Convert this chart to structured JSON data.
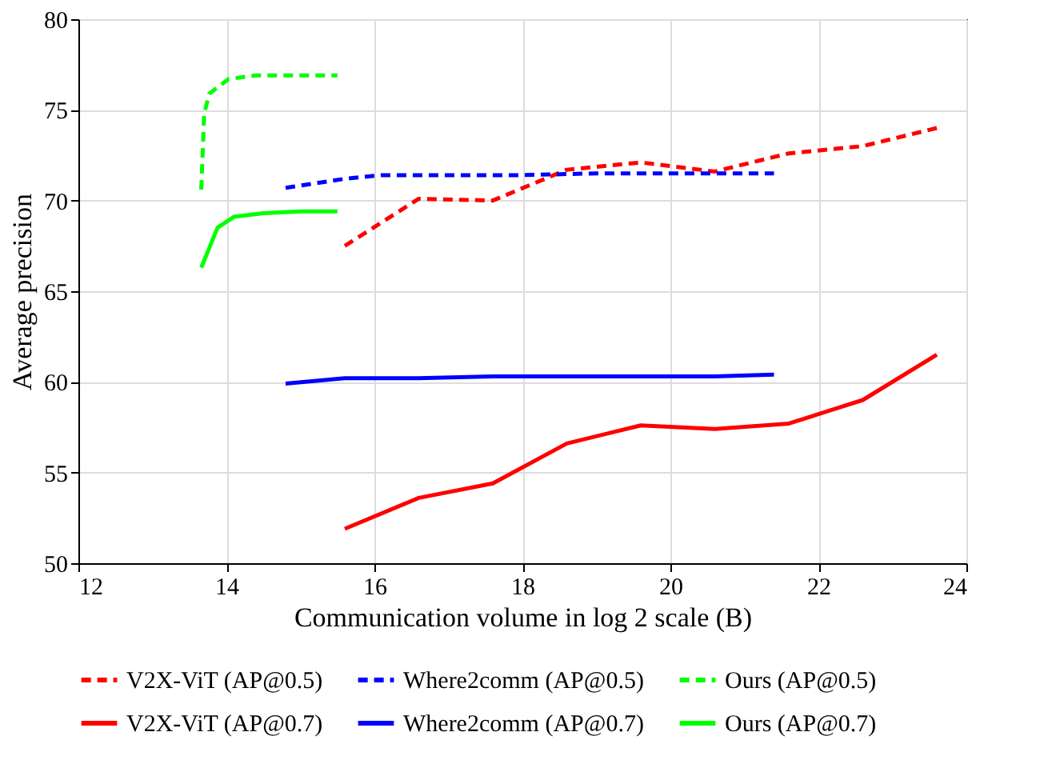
{
  "chart_data": {
    "type": "line",
    "xlabel": "Communication volume in log 2 scale (B)",
    "ylabel": "Average precision",
    "xlim": [
      12,
      24
    ],
    "xticks": [
      12,
      14,
      16,
      18,
      20,
      22,
      24
    ],
    "ylim": [
      50,
      80
    ],
    "yticks": [
      50,
      55,
      60,
      65,
      70,
      75,
      80
    ],
    "grid": true,
    "legend": "bottom",
    "marker": "none",
    "series": [
      {
        "name": "V2X-ViT (AP@0.5)",
        "color": "#ff0000",
        "line_style": "dashed",
        "x": [
          15.6,
          16.6,
          17.6,
          18.6,
          19.6,
          20.6,
          21.6,
          22.6,
          23.6
        ],
        "values": [
          67.5,
          70.1,
          70.0,
          71.7,
          72.1,
          71.6,
          72.6,
          73.0,
          74.0
        ]
      },
      {
        "name": "Where2comm (AP@0.5)",
        "color": "#0000ff",
        "line_style": "dashed",
        "x": [
          14.8,
          15.6,
          16.1,
          17.0,
          18.0,
          19.0,
          20.0,
          21.0,
          21.4
        ],
        "values": [
          70.7,
          71.2,
          71.4,
          71.4,
          71.4,
          71.5,
          71.5,
          71.5,
          71.5
        ]
      },
      {
        "name": "Ours (AP@0.5)",
        "color": "#00ff00",
        "line_style": "dashed",
        "x": [
          13.66,
          13.7,
          13.77,
          14.03,
          14.4,
          15.5
        ],
        "values": [
          70.6,
          74.8,
          75.9,
          76.7,
          76.9,
          76.9
        ]
      },
      {
        "name": "V2X-ViT (AP@0.7)",
        "color": "#ff0000",
        "line_style": "solid",
        "x": [
          15.6,
          16.6,
          17.6,
          18.6,
          19.6,
          20.6,
          21.6,
          22.6,
          23.6
        ],
        "values": [
          51.9,
          53.6,
          54.4,
          56.6,
          57.6,
          57.4,
          57.7,
          59.0,
          61.5
        ]
      },
      {
        "name": "Where2comm (AP@0.7)",
        "color": "#0000ff",
        "line_style": "solid",
        "x": [
          14.8,
          15.6,
          16.6,
          17.6,
          18.6,
          19.6,
          20.6,
          21.4
        ],
        "values": [
          59.9,
          60.2,
          60.2,
          60.3,
          60.3,
          60.3,
          60.3,
          60.4
        ]
      },
      {
        "name": "Ours (AP@0.7)",
        "color": "#00ff00",
        "line_style": "solid",
        "x": [
          13.66,
          13.88,
          14.1,
          14.5,
          15.0,
          15.5
        ],
        "values": [
          66.3,
          68.5,
          69.1,
          69.3,
          69.4,
          69.4
        ]
      }
    ]
  }
}
